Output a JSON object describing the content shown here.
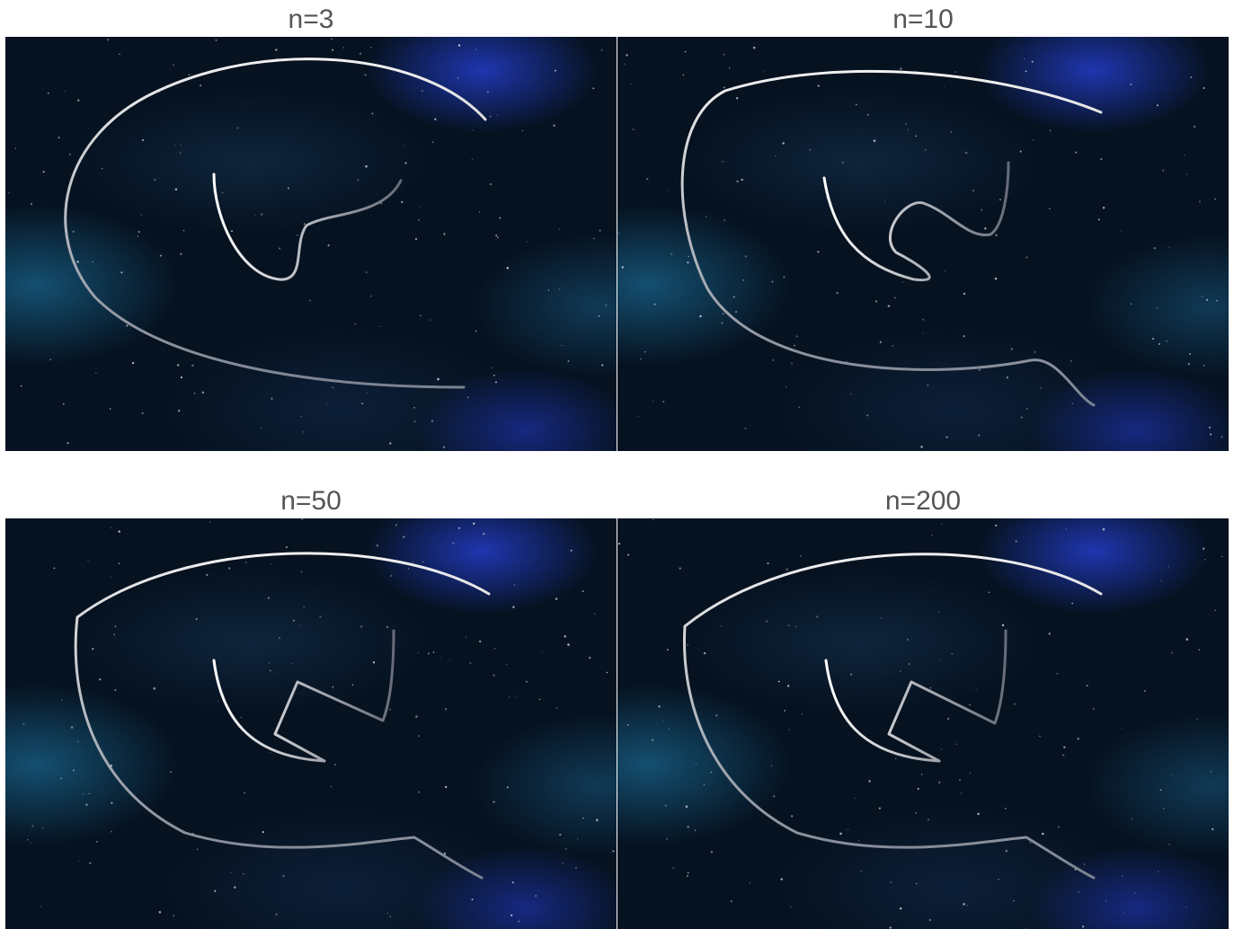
{
  "panels": [
    {
      "title": "n=3"
    },
    {
      "title": "n=10"
    },
    {
      "title": "n=50"
    },
    {
      "title": "n=200"
    }
  ]
}
